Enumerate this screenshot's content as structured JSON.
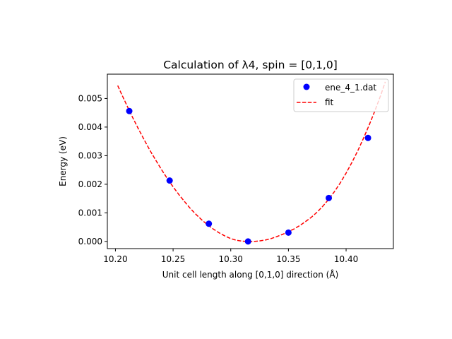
{
  "chart_data": {
    "type": "scatter",
    "title": "Calculation of λ4, spin = [0,1,0]",
    "xlabel": "Unit cell length along [0,1,0] direction (Å)",
    "ylabel": "Energy (eV)",
    "xlim": [
      10.193,
      10.441
    ],
    "ylim": [
      -0.00025,
      0.00585
    ],
    "xticks": [
      10.2,
      10.25,
      10.3,
      10.35,
      10.4
    ],
    "xtick_labels": [
      "10.20",
      "10.25",
      "10.30",
      "10.35",
      "10.40"
    ],
    "yticks": [
      0.0,
      0.001,
      0.002,
      0.003,
      0.004,
      0.005
    ],
    "ytick_labels": [
      "0.000",
      "0.001",
      "0.002",
      "0.003",
      "0.004",
      "0.005"
    ],
    "grid": false,
    "legend_position": "top-right",
    "series": [
      {
        "name": "ene_4_1.dat",
        "kind": "points",
        "color": "#0000ff",
        "x": [
          10.212,
          10.247,
          10.281,
          10.315,
          10.35,
          10.385,
          10.419
        ],
        "y": [
          0.00456,
          0.00213,
          0.00062,
          0.0,
          0.00031,
          0.00152,
          0.00362
        ]
      },
      {
        "name": "fit",
        "kind": "dashed-line",
        "color": "#ff0000",
        "x": [
          10.202,
          10.205,
          10.21,
          10.215,
          10.22,
          10.225,
          10.23,
          10.235,
          10.24,
          10.245,
          10.25,
          10.255,
          10.26,
          10.265,
          10.27,
          10.275,
          10.28,
          10.285,
          10.29,
          10.295,
          10.3,
          10.305,
          10.31,
          10.315,
          10.32,
          10.325,
          10.33,
          10.335,
          10.34,
          10.345,
          10.35,
          10.355,
          10.36,
          10.365,
          10.37,
          10.375,
          10.38,
          10.385,
          10.39,
          10.395,
          10.4,
          10.405,
          10.41,
          10.415,
          10.42,
          10.425,
          10.43,
          10.434
        ],
        "y": [
          0.00545,
          0.00518,
          0.00475,
          0.00433,
          0.00393,
          0.00355,
          0.00318,
          0.00284,
          0.00251,
          0.0022,
          0.00191,
          0.00164,
          0.00139,
          0.00115,
          0.00094,
          0.00075,
          0.00058,
          0.00043,
          0.0003,
          0.00019,
          0.0001,
          4e-05,
          1e-05,
          0.0,
          0.0,
          2e-05,
          5e-05,
          0.0001,
          0.00017,
          0.00025,
          0.00034,
          0.00044,
          0.00056,
          0.0007,
          0.00085,
          0.00103,
          0.00124,
          0.00148,
          0.00175,
          0.00205,
          0.00239,
          0.00276,
          0.00316,
          0.0036,
          0.00407,
          0.00457,
          0.00511,
          0.00558
        ]
      }
    ]
  }
}
